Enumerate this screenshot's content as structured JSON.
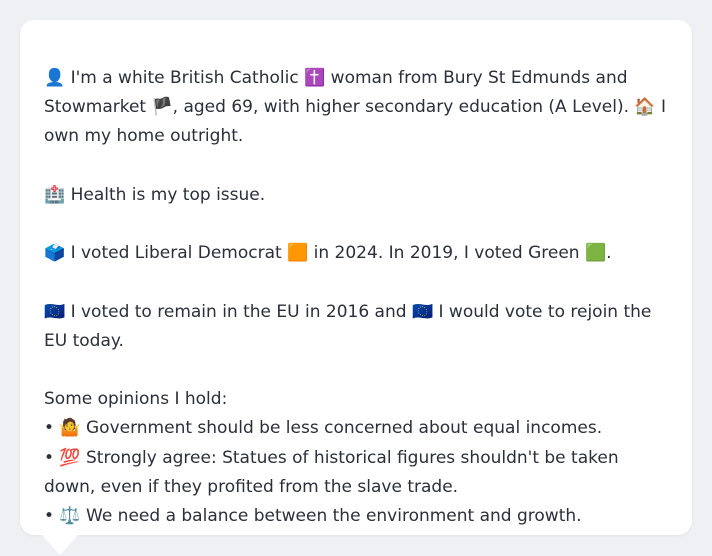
{
  "profile": {
    "identity": "👤 I'm a white British Catholic ✝️ woman from Bury St Edmunds and Stowmarket 🏴, aged 69, with higher secondary education (A Level). 🏠 I own my home outright.",
    "top_issue": "🏥 Health is my top issue.",
    "votes": "🗳️ I voted Liberal Democrat 🟧 in 2024. In 2019, I voted Green 🟩.",
    "eu": "🇪🇺 I voted to remain in the EU in 2016 and 🇪🇺 I would vote to rejoin the EU today.",
    "opinions_heading": "Some opinions I hold:",
    "opinions": [
      "• 🤷 Government should be less concerned about equal incomes.",
      "• 💯 Strongly agree: Statues of historical figures shouldn't be taken down, even if they profited from the slave trade.",
      "• ⚖️ We need a balance between the environment and growth."
    ]
  }
}
